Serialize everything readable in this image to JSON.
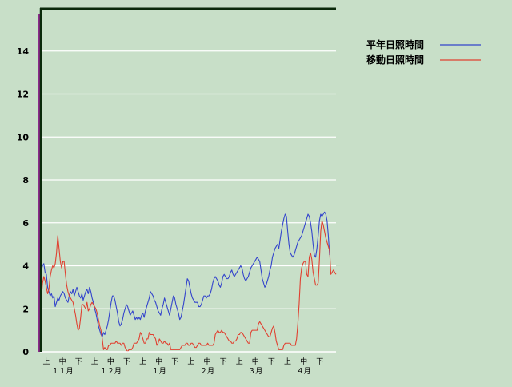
{
  "chart_data": {
    "type": "line",
    "title": "",
    "xlabel": "",
    "ylabel": "",
    "ylim": [
      0,
      16
    ],
    "yticks": [
      0,
      2,
      4,
      6,
      8,
      10,
      12,
      14
    ],
    "grid": true,
    "legend_position": "top-right",
    "colors": {
      "background": "#c8dfc8",
      "grid": "#ffffff",
      "left_axis": "#8a2a8a",
      "top_border": "#0a2a0a"
    },
    "x_tick_labels": [
      "上",
      "中",
      "下",
      "上",
      "中",
      "下",
      "上",
      "中",
      "下",
      "上",
      "中",
      "下",
      "上",
      "中",
      "下",
      "上",
      "中",
      "下"
    ],
    "months": [
      "１１月",
      "１２月",
      "１月",
      "２月",
      "３月",
      "４月"
    ],
    "series": [
      {
        "name": "平年日照時間",
        "color": "#3344cc",
        "values": [
          3.9,
          3.8,
          4.0,
          4.1,
          3.7,
          3.6,
          3.0,
          2.8,
          2.6,
          2.7,
          2.5,
          2.6,
          2.1,
          2.3,
          2.5,
          2.4,
          2.6,
          2.7,
          2.8,
          2.7,
          2.5,
          2.4,
          2.3,
          2.6,
          2.8,
          2.7,
          2.9,
          2.6,
          2.8,
          3.0,
          2.8,
          2.6,
          2.5,
          2.7,
          2.4,
          2.6,
          2.8,
          2.9,
          2.7,
          3.0,
          2.8,
          2.5,
          2.3,
          2.0,
          1.8,
          1.5,
          1.2,
          1.0,
          0.8,
          0.7,
          0.9,
          0.8,
          1.0,
          1.2,
          1.5,
          1.9,
          2.3,
          2.6,
          2.6,
          2.4,
          2.1,
          1.8,
          1.4,
          1.2,
          1.3,
          1.5,
          1.8,
          2.0,
          2.2,
          2.1,
          1.9,
          1.7,
          1.8,
          1.9,
          1.7,
          1.5,
          1.6,
          1.5,
          1.6,
          1.5,
          1.7,
          1.8,
          1.6,
          1.9,
          2.1,
          2.3,
          2.5,
          2.8,
          2.7,
          2.6,
          2.4,
          2.3,
          2.1,
          1.9,
          1.8,
          1.7,
          2.0,
          2.2,
          2.5,
          2.3,
          2.1,
          1.9,
          1.7,
          2.0,
          2.3,
          2.6,
          2.5,
          2.2,
          2.0,
          1.8,
          1.5,
          1.6,
          1.9,
          2.2,
          2.6,
          3.0,
          3.4,
          3.3,
          3.0,
          2.7,
          2.5,
          2.4,
          2.3,
          2.3,
          2.3,
          2.1,
          2.1,
          2.2,
          2.4,
          2.6,
          2.6,
          2.5,
          2.6,
          2.6,
          2.7,
          2.9,
          3.2,
          3.4,
          3.5,
          3.4,
          3.3,
          3.1,
          3.0,
          3.2,
          3.5,
          3.6,
          3.5,
          3.4,
          3.4,
          3.5,
          3.7,
          3.8,
          3.6,
          3.5,
          3.6,
          3.7,
          3.8,
          3.9,
          4.0,
          3.9,
          3.6,
          3.4,
          3.3,
          3.4,
          3.5,
          3.7,
          3.9,
          4.0,
          4.1,
          4.2,
          4.3,
          4.4,
          4.3,
          4.2,
          3.8,
          3.4,
          3.2,
          3.0,
          3.1,
          3.3,
          3.5,
          3.8,
          4.0,
          4.4,
          4.6,
          4.8,
          4.9,
          5.0,
          4.8,
          5.2,
          5.6,
          5.9,
          6.2,
          6.4,
          6.3,
          5.6,
          5.0,
          4.6,
          4.5,
          4.4,
          4.5,
          4.7,
          4.9,
          5.1,
          5.2,
          5.3,
          5.4,
          5.6,
          5.8,
          6.0,
          6.2,
          6.4,
          6.3,
          6.0,
          5.6,
          5.0,
          4.5,
          4.4,
          4.8,
          5.4,
          6.1,
          6.4,
          6.3,
          6.4,
          6.5,
          6.4,
          6.1,
          5.4,
          4.5
        ]
      },
      {
        "name": "移動日照時間",
        "color": "#e04030",
        "values": [
          2.0,
          2.5,
          3.2,
          3.5,
          3.3,
          3.0,
          2.7,
          2.9,
          3.5,
          3.8,
          4.0,
          3.9,
          4.1,
          4.6,
          5.4,
          4.8,
          4.2,
          3.9,
          4.2,
          4.2,
          3.6,
          3.1,
          2.8,
          2.6,
          2.5,
          2.4,
          2.3,
          2.0,
          1.7,
          1.3,
          1.0,
          1.1,
          1.6,
          2.2,
          2.2,
          2.1,
          2.0,
          2.3,
          1.9,
          2.0,
          2.2,
          2.3,
          2.2,
          2.1,
          2.0,
          1.8,
          1.5,
          1.2,
          1.0,
          0.6,
          0.1,
          0.2,
          0.1,
          0.1,
          0.3,
          0.3,
          0.4,
          0.4,
          0.4,
          0.4,
          0.5,
          0.4,
          0.4,
          0.4,
          0.3,
          0.4,
          0.4,
          0.2,
          0.1,
          0.0,
          0.1,
          0.1,
          0.1,
          0.2,
          0.4,
          0.4,
          0.4,
          0.5,
          0.6,
          0.9,
          0.8,
          0.6,
          0.4,
          0.4,
          0.6,
          0.6,
          0.9,
          0.8,
          0.8,
          0.8,
          0.7,
          0.6,
          0.3,
          0.4,
          0.6,
          0.5,
          0.4,
          0.4,
          0.5,
          0.4,
          0.4,
          0.3,
          0.4,
          0.1,
          0.1,
          0.1,
          0.1,
          0.1,
          0.1,
          0.1,
          0.1,
          0.2,
          0.3,
          0.3,
          0.3,
          0.4,
          0.4,
          0.3,
          0.3,
          0.4,
          0.4,
          0.3,
          0.2,
          0.2,
          0.3,
          0.4,
          0.4,
          0.3,
          0.3,
          0.3,
          0.3,
          0.3,
          0.4,
          0.3,
          0.3,
          0.3,
          0.3,
          0.4,
          0.8,
          0.9,
          1.0,
          0.9,
          0.9,
          1.0,
          0.9,
          0.9,
          0.8,
          0.7,
          0.6,
          0.5,
          0.5,
          0.4,
          0.4,
          0.5,
          0.5,
          0.6,
          0.8,
          0.8,
          0.9,
          0.9,
          0.8,
          0.7,
          0.6,
          0.5,
          0.4,
          0.4,
          0.9,
          1.0,
          1.0,
          1.0,
          1.0,
          1.0,
          1.3,
          1.4,
          1.3,
          1.2,
          1.1,
          1.0,
          0.9,
          0.8,
          0.7,
          0.7,
          0.9,
          1.1,
          1.2,
          0.9,
          0.5,
          0.3,
          0.1,
          0.1,
          0.1,
          0.1,
          0.3,
          0.4,
          0.4,
          0.4,
          0.4,
          0.4,
          0.3,
          0.3,
          0.3,
          0.3,
          0.6,
          1.3,
          2.2,
          3.4,
          3.9,
          4.1,
          4.2,
          4.2,
          3.6,
          3.5,
          4.4,
          4.6,
          4.3,
          3.7,
          3.4,
          3.1,
          3.1,
          3.2,
          4.3,
          5.6,
          6.1,
          5.9,
          5.6,
          5.3,
          5.1,
          4.9,
          4.7,
          3.6,
          3.7,
          3.8,
          3.7,
          3.6
        ]
      }
    ]
  }
}
